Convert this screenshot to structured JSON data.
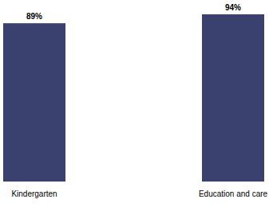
{
  "chart_data": {
    "type": "bar",
    "categories": [
      "Kindergarten",
      "Education and care"
    ],
    "values": [
      89,
      94
    ],
    "value_labels": [
      "89%",
      "94%"
    ],
    "color": "#3b416e",
    "ylim": [
      0,
      94
    ],
    "data_labels": true,
    "tick_labels": "x"
  }
}
